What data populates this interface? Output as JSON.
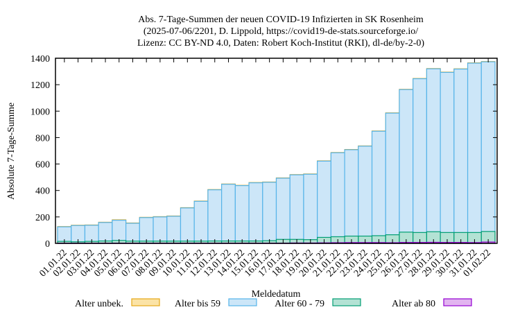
{
  "chart_data": {
    "type": "bar",
    "title": [
      "Abs. 7-Tage-Summen der neuen COVID-19 Infizierten in SK Rosenheim",
      "(2025-07-06/2201, D. Lippold, https://covid19-de-stats.sourceforge.io/",
      "Lizenz: CC BY-ND 4.0, Daten: Robert Koch-Institut (RKI), dl-de/by-2-0)"
    ],
    "xlabel": "Meldedatum",
    "ylabel": "Absolute 7-Tage-Summe",
    "ylim": [
      0,
      1400
    ],
    "yticks": [
      0,
      200,
      400,
      600,
      800,
      1000,
      1200,
      1400
    ],
    "legend_position": "bottom",
    "categories": [
      "01.01.22",
      "02.01.22",
      "03.01.22",
      "04.01.22",
      "05.01.22",
      "06.01.22",
      "07.01.22",
      "08.01.22",
      "09.01.22",
      "10.01.22",
      "11.01.22",
      "12.01.22",
      "13.01.22",
      "14.01.22",
      "15.01.22",
      "16.01.22",
      "17.01.22",
      "18.01.22",
      "19.01.22",
      "20.01.22",
      "21.01.22",
      "22.01.22",
      "23.01.22",
      "24.01.22",
      "25.01.22",
      "26.01.22",
      "27.01.22",
      "28.01.22",
      "29.01.22",
      "30.01.22",
      "31.01.22",
      "01.02.22"
    ],
    "series": [
      {
        "name": "Alter unbek.",
        "fill": "#fbe3a6",
        "stroke": "#e6a817",
        "values": [
          127,
          137,
          139,
          160,
          178,
          154,
          197,
          202,
          207,
          270,
          320,
          407,
          449,
          439,
          460,
          464,
          495,
          520,
          525,
          624,
          687,
          710,
          737,
          850,
          987,
          1165,
          1247,
          1322,
          1295,
          1320,
          1365,
          1375
        ]
      },
      {
        "name": "Alter bis 59",
        "fill": "#cce6f8",
        "stroke": "#56b4e9",
        "values": [
          125,
          135,
          137,
          158,
          175,
          152,
          195,
          200,
          205,
          268,
          318,
          405,
          447,
          437,
          458,
          462,
          493,
          518,
          523,
          622,
          685,
          708,
          735,
          848,
          985,
          1163,
          1245,
          1320,
          1293,
          1318,
          1363,
          1373
        ]
      },
      {
        "name": "Alter 60 - 79",
        "fill": "#b3e2d4",
        "stroke": "#009e73",
        "values": [
          15,
          12,
          15,
          18,
          22,
          17,
          17,
          17,
          17,
          17,
          17,
          18,
          18,
          18,
          18,
          20,
          30,
          30,
          28,
          45,
          50,
          55,
          55,
          58,
          65,
          85,
          82,
          88,
          82,
          82,
          82,
          90
        ]
      },
      {
        "name": "Alter ab 80",
        "fill": "#e2b4f0",
        "stroke": "#9400d3",
        "values": [
          2,
          2,
          2,
          2,
          2,
          2,
          2,
          2,
          2,
          2,
          2,
          2,
          2,
          2,
          2,
          2,
          2,
          3,
          3,
          4,
          5,
          6,
          6,
          6,
          5,
          7,
          7,
          8,
          7,
          7,
          6,
          10
        ]
      }
    ]
  }
}
